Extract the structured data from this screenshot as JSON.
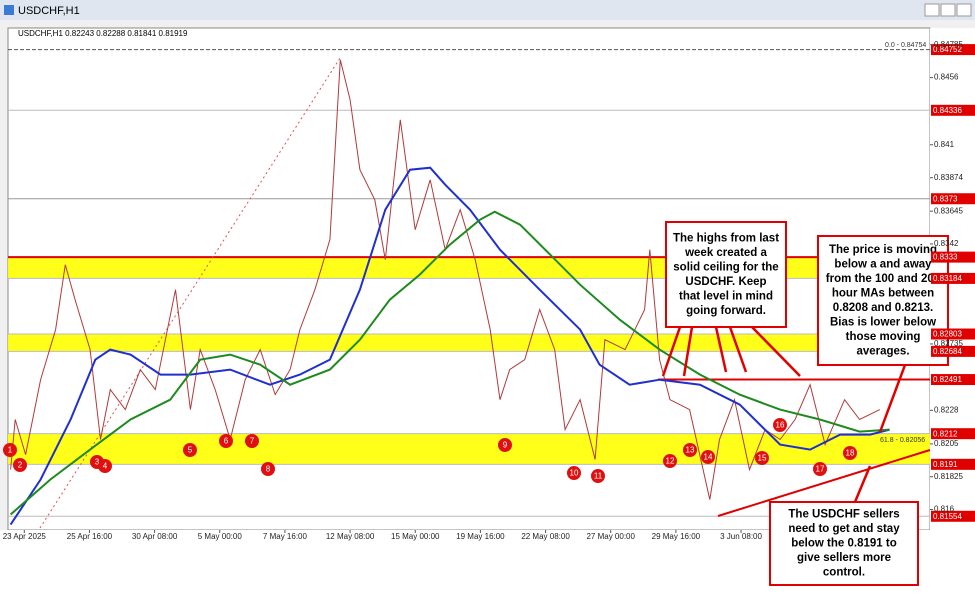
{
  "chart_data": {
    "type": "line",
    "title": "USDCHF,H1",
    "subtitle": "USDCHF,H1  0.82243 0.82288 0.81841 0.81919",
    "xlim": [
      -0.25,
      13.9
    ],
    "xticks": [
      {
        "value": 0,
        "label": "23 Apr 2025"
      },
      {
        "value": 1,
        "label": "25 Apr 16:00"
      },
      {
        "value": 2,
        "label": "30 Apr 08:00"
      },
      {
        "value": 3,
        "label": "5 May 00:00"
      },
      {
        "value": 4,
        "label": "7 May 16:00"
      },
      {
        "value": 5,
        "label": "12 May 08:00"
      },
      {
        "value": 6,
        "label": "15 May 00:00"
      },
      {
        "value": 7,
        "label": "19 May 16:00"
      },
      {
        "value": 8,
        "label": "22 May 08:00"
      },
      {
        "value": 9,
        "label": "27 May 00:00"
      },
      {
        "value": 10,
        "label": "29 May 16:00"
      },
      {
        "value": 11,
        "label": "3 Jun 08:00"
      }
    ],
    "ylim": [
      0.8146,
      0.849
    ],
    "yticks": [
      0.84785,
      0.8456,
      0.841,
      0.83874,
      0.83645,
      0.8342,
      0.82735,
      0.8228,
      0.8205,
      0.81825,
      0.816
    ],
    "grid": false,
    "series": [
      {
        "color": "#b03a3a",
        "x": [
          -0.21,
          -0.14,
          0.02,
          0.25,
          0.48,
          0.63,
          0.78,
          1.01,
          1.17,
          1.32,
          1.55,
          1.78,
          2.01,
          2.32,
          2.55,
          2.7,
          2.93,
          3.16,
          3.39,
          3.62,
          3.85,
          4.08,
          4.23,
          4.46,
          4.69,
          4.85,
          5.0,
          5.15,
          5.38,
          5.54,
          5.77,
          6.0,
          6.23,
          6.46,
          6.69,
          6.92,
          7.15,
          7.3,
          7.45,
          7.68,
          7.91,
          8.14,
          8.3,
          8.53,
          8.76,
          8.91,
          9.22,
          9.52,
          9.6,
          9.75,
          9.91,
          10.21,
          10.52,
          10.67,
          10.9,
          11.13,
          11.37,
          11.6,
          11.83,
          12.06,
          12.29,
          12.59,
          12.82,
          13.13
        ],
        "values": [
          0.81874,
          0.82217,
          0.81977,
          0.8249,
          0.82833,
          0.83278,
          0.83038,
          0.82696,
          0.8208,
          0.82422,
          0.82285,
          0.82559,
          0.82422,
          0.83107,
          0.82285,
          0.82696,
          0.82422,
          0.8208,
          0.8249,
          0.82696,
          0.82388,
          0.82559,
          0.82833,
          0.83107,
          0.83449,
          0.84682,
          0.84408,
          0.83929,
          0.83723,
          0.83312,
          0.84271,
          0.83518,
          0.8386,
          0.83381,
          0.83655,
          0.83312,
          0.82833,
          0.82353,
          0.82559,
          0.82627,
          0.8297,
          0.82696,
          0.82148,
          0.82353,
          0.81943,
          0.82764,
          0.82696,
          0.8297,
          0.83381,
          0.82627,
          0.82353,
          0.82285,
          0.81669,
          0.8208,
          0.82353,
          0.81874,
          0.82148,
          0.8208,
          0.82217,
          0.82456,
          0.82045,
          0.82353,
          0.82217,
          0.82285
        ]
      },
      {
        "color": "#1f2fd0",
        "x": [
          -0.21,
          0.25,
          0.71,
          1.09,
          1.32,
          1.63,
          2.09,
          2.55,
          3.16,
          3.77,
          4.23,
          4.69,
          5.15,
          5.54,
          5.92,
          6.23,
          6.46,
          6.84,
          7.3,
          7.91,
          8.53,
          8.83,
          9.29,
          9.75,
          10.37,
          10.98,
          11.6,
          12.06,
          12.52,
          12.98,
          13.28
        ],
        "values": [
          0.81497,
          0.81806,
          0.82217,
          0.82627,
          0.82696,
          0.82662,
          0.82525,
          0.82525,
          0.82559,
          0.82456,
          0.82525,
          0.82627,
          0.83107,
          0.83655,
          0.83929,
          0.83943,
          0.83826,
          0.83655,
          0.83381,
          0.83107,
          0.82833,
          0.82593,
          0.82456,
          0.8249,
          0.82456,
          0.82319,
          0.82045,
          0.82011,
          0.82114,
          0.82114,
          0.82148
        ]
      },
      {
        "color": "#1e8a1e",
        "x": [
          -0.21,
          0.4,
          1.01,
          1.63,
          2.24,
          2.7,
          3.16,
          3.62,
          4.08,
          4.69,
          5.15,
          5.61,
          6.07,
          6.53,
          6.99,
          7.22,
          7.61,
          8.07,
          8.53,
          9.14,
          9.75,
          10.37,
          10.98,
          11.6,
          12.21,
          12.82,
          13.28
        ],
        "values": [
          0.81566,
          0.81806,
          0.82011,
          0.82217,
          0.82353,
          0.82627,
          0.82662,
          0.82593,
          0.82456,
          0.82559,
          0.82764,
          0.83038,
          0.8321,
          0.83415,
          0.83586,
          0.83641,
          0.83552,
          0.83347,
          0.83141,
          0.82901,
          0.82696,
          0.82525,
          0.82388,
          0.82285,
          0.82217,
          0.82134,
          0.82148
        ]
      }
    ],
    "zones": [
      {
        "from": 0.8333,
        "to": 0.83184
      },
      {
        "from": 0.82803,
        "to": 0.82684
      },
      {
        "from": 0.8212,
        "to": 0.8191
      }
    ],
    "zone_color": "#ffff00",
    "levels": [
      {
        "value": 0.84752,
        "color": "#555555"
      },
      {
        "value": 0.84336,
        "color": "#bbbbbb"
      },
      {
        "value": 0.8373,
        "color": "#999999"
      },
      {
        "value": 0.8333,
        "color": "#e00000"
      },
      {
        "value": 0.83184,
        "color": "#bbbbbb"
      },
      {
        "value": 0.82803,
        "color": "#bbbbbb"
      },
      {
        "value": 0.82684,
        "color": "#bbbbbb"
      },
      {
        "value": 0.82491,
        "color": "#e00000"
      },
      {
        "value": 0.8212,
        "color": "#bbbbbb"
      },
      {
        "value": 0.8191,
        "color": "#bbbbbb"
      },
      {
        "value": 0.81554,
        "color": "#bbbbbb"
      }
    ],
    "level_label_color": "#e00000",
    "fib_labels": [
      "0.0 - 0.84754",
      "61.8 - 0.82056"
    ],
    "markers": [
      "1",
      "2",
      "3",
      "4",
      "5",
      "6",
      "7",
      "8",
      "9",
      "10",
      "11",
      "12",
      "13",
      "14",
      "15",
      "16",
      "17",
      "18"
    ],
    "annotations": [
      [
        "The highs from last",
        "week created a",
        "solid ceiling for the",
        "USDCHF.  Keep",
        "that level in mind",
        "going forward."
      ],
      [
        "The price is moving",
        "below a and away",
        "from the 100 and 200",
        "hour MAs between",
        "0.8208 and 0.8213.",
        "Bias is lower below",
        "those moving",
        "averages."
      ],
      [
        "The USDCHF sellers",
        "need to get and stay",
        "below the 0.8191 to",
        "give sellers more",
        "control."
      ]
    ]
  }
}
